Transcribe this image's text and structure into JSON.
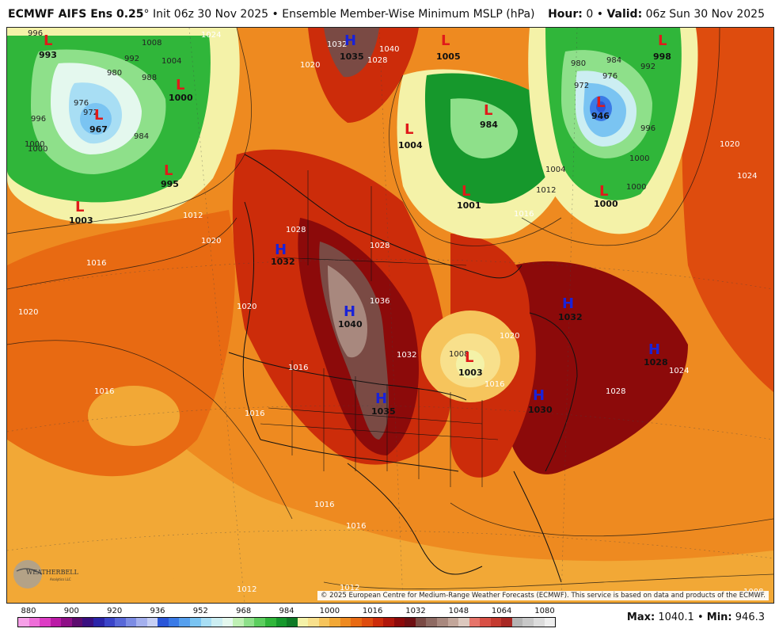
{
  "header": {
    "model": "ECMWF AIFS Ens 0.25",
    "degree": "°",
    "init": "Init 06z 30 Nov 2025",
    "bullet": "•",
    "product": "Ensemble Member-Wise Minimum MSLP (hPa)",
    "hour_label": "Hour:",
    "hour_value": "0",
    "valid_label": "Valid:",
    "valid_value": "06z Sun 30 Nov 2025"
  },
  "copyright": "© 2025 European Centre for Medium-Range Weather Forecasts (ECMWF). This service is based on data and products of the ECMWF.",
  "logo": {
    "text": "WEATHERBELL",
    "subtext": "Analytics LLC"
  },
  "colorbar": {
    "labels": [
      "880",
      "900",
      "920",
      "936",
      "952",
      "968",
      "984",
      "1000",
      "1016",
      "1032",
      "1048",
      "1064",
      "1080"
    ],
    "colors": [
      "#f7a0e8",
      "#ee6ed8",
      "#dd3cc4",
      "#bb1aa6",
      "#8e0f86",
      "#5c0b6e",
      "#3a0f80",
      "#2b24a8",
      "#3a44c8",
      "#5868d8",
      "#7c8ce4",
      "#a4b0ee",
      "#c6cff4",
      "#2a56d8",
      "#3a7ae6",
      "#56a0ee",
      "#7ac4f2",
      "#a8def4",
      "#cceef2",
      "#e4f8ee",
      "#bff0b4",
      "#8ee08a",
      "#5cce5e",
      "#30b63a",
      "#16982c",
      "#0f7a25",
      "#f4f2a8",
      "#f8e08c",
      "#f6c45c",
      "#f2a836",
      "#ee8a20",
      "#e86a12",
      "#de4c0e",
      "#cc2c0a",
      "#b0160a",
      "#8c0a0a",
      "#6e0f12",
      "#7a4a44",
      "#8e6a62",
      "#a8887e",
      "#c2a69a",
      "#dcc8be",
      "#e6746a",
      "#d85046",
      "#c43a30",
      "#a82824",
      "#b4b4b4",
      "#c8c8c8",
      "#dcdcdc",
      "#eeeeee"
    ]
  },
  "max_label": "Max:",
  "max_value": "1040.1",
  "min_label": "Min:",
  "min_value": "946.3",
  "centers": [
    {
      "type": "L",
      "value": "993"
    },
    {
      "type": "L",
      "value": "967"
    },
    {
      "type": "L",
      "value": "1000"
    },
    {
      "type": "L",
      "value": "995"
    },
    {
      "type": "L",
      "value": "1003"
    },
    {
      "type": "H",
      "value": "1035"
    },
    {
      "type": "L",
      "value": "1005"
    },
    {
      "type": "L",
      "value": "984"
    },
    {
      "type": "L",
      "value": "1004"
    },
    {
      "type": "L",
      "value": "1001"
    },
    {
      "type": "L",
      "value": "946"
    },
    {
      "type": "L",
      "value": "998"
    },
    {
      "type": "L",
      "value": "1000"
    },
    {
      "type": "H",
      "value": "1032"
    },
    {
      "type": "H",
      "value": "1040"
    },
    {
      "type": "H",
      "value": "1035"
    },
    {
      "type": "L",
      "value": "1003"
    },
    {
      "type": "H",
      "value": "1032"
    },
    {
      "type": "H",
      "value": "1028"
    },
    {
      "type": "H",
      "value": "1030"
    }
  ],
  "isobar_labels": [
    "996",
    "1008",
    "1024",
    "992",
    "988",
    "1004",
    "1000",
    "976",
    "972",
    "984",
    "980",
    "996",
    "1000",
    "1012",
    "1020",
    "1016",
    "1020",
    "1028",
    "1032",
    "1036",
    "1028",
    "1020",
    "1016",
    "1016",
    "1016",
    "1008",
    "1020",
    "1016",
    "1016",
    "1016",
    "1012",
    "1012",
    "1020",
    "1024",
    "1028",
    "1024",
    "1020",
    "1032",
    "1028",
    "1040",
    "1004",
    "1012",
    "1016",
    "1000",
    "984",
    "976",
    "992",
    "980",
    "972",
    "996",
    "1000",
    "1008"
  ]
}
